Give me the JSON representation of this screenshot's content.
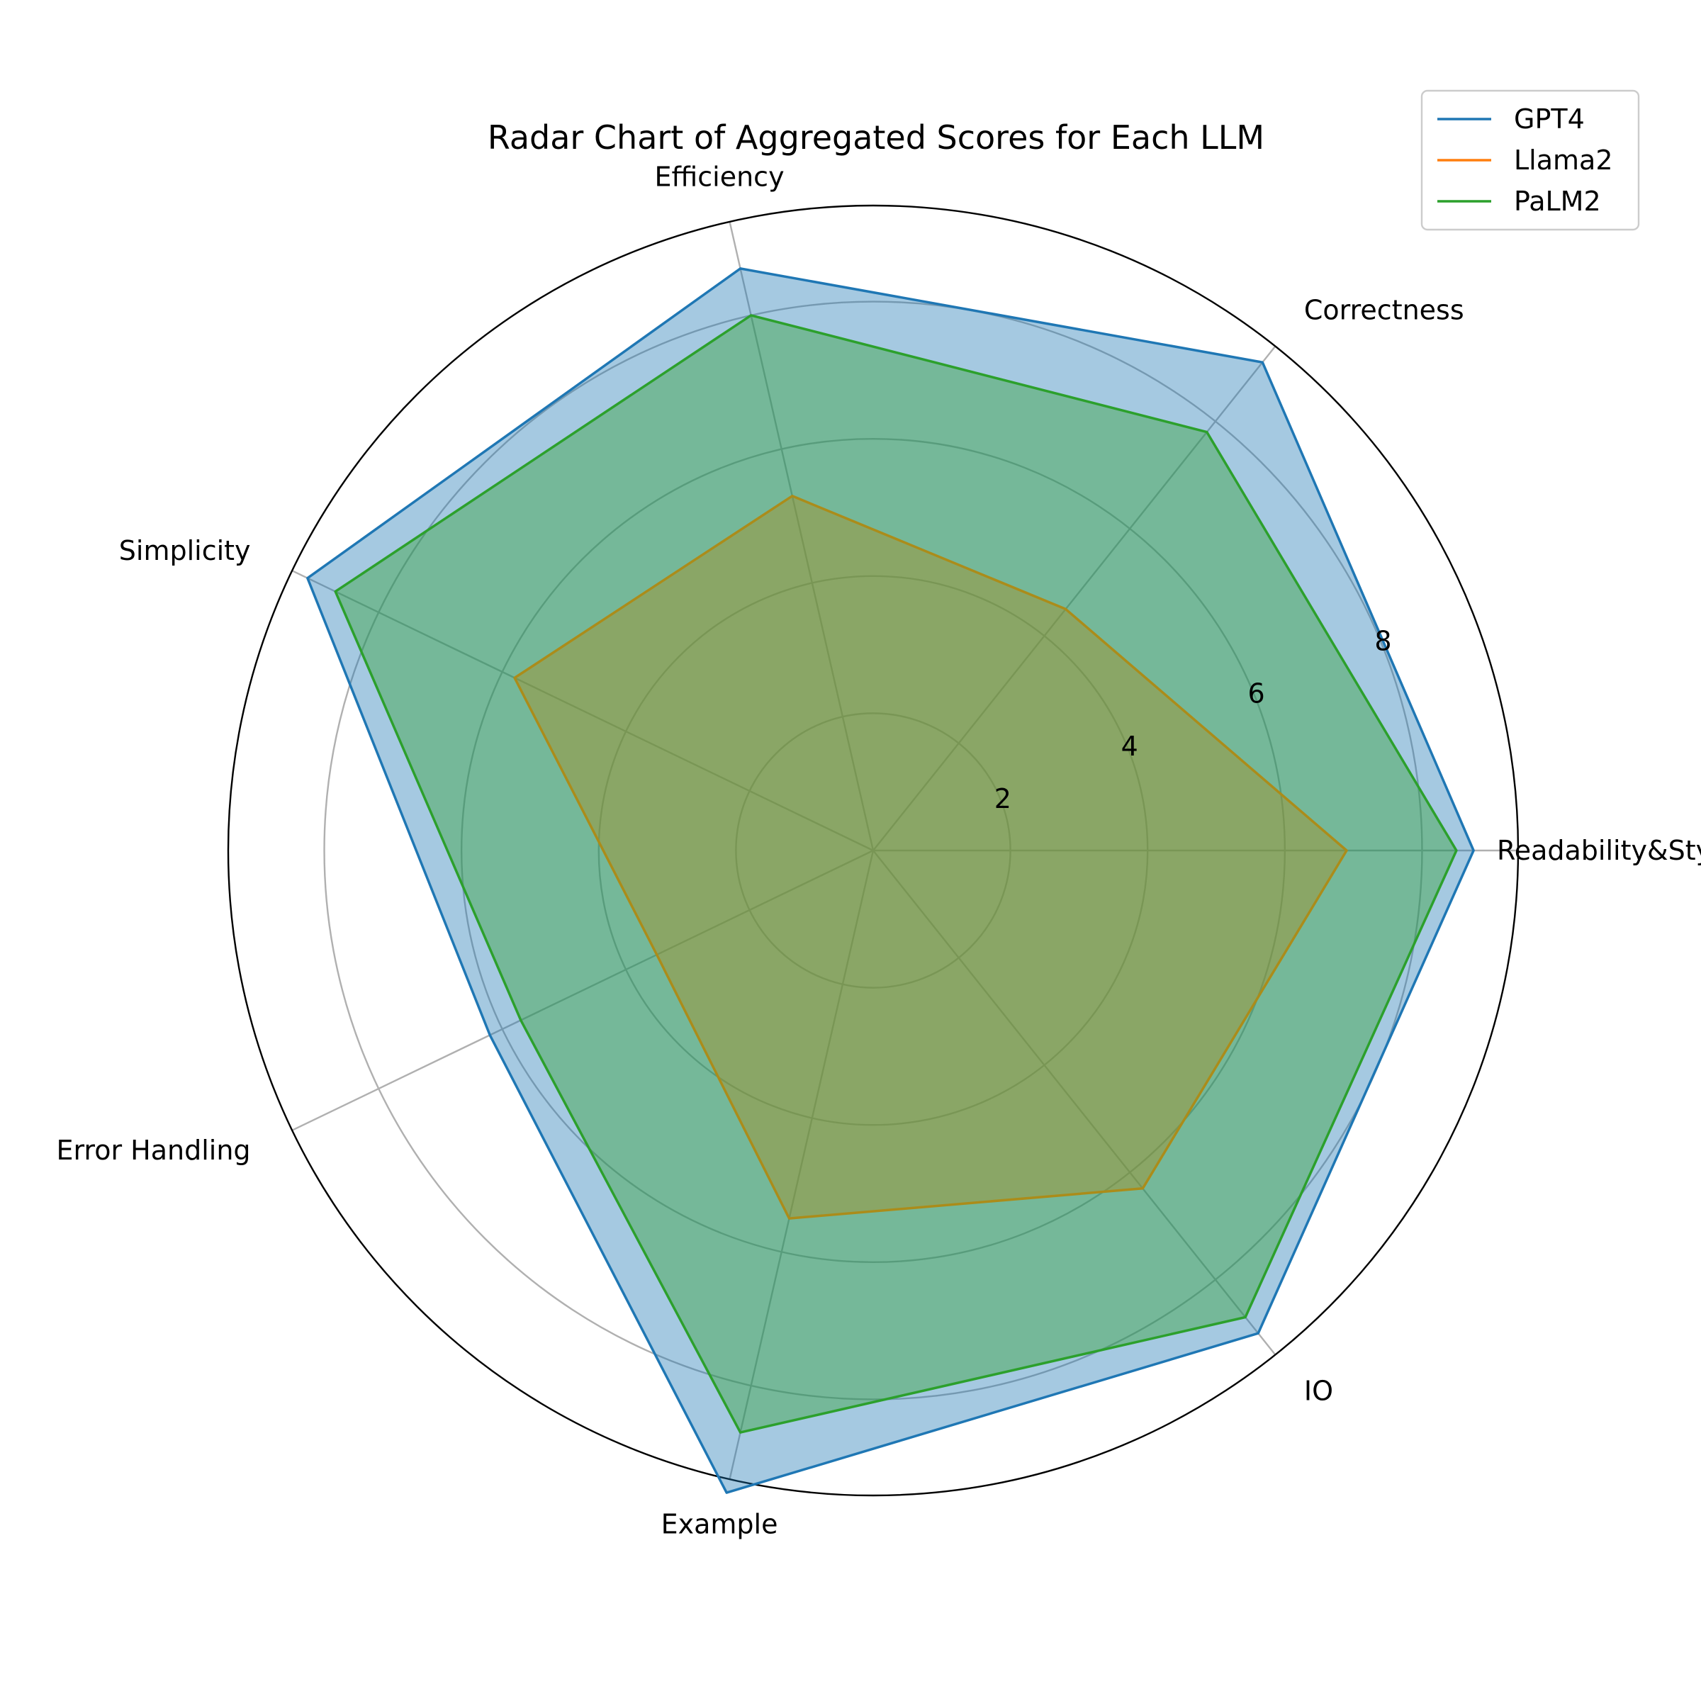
{
  "chart_data": {
    "type": "radar",
    "title": "Radar Chart of Aggregated Scores for Each LLM",
    "categories": [
      "Readability&Style",
      "Correctness",
      "Efficiency",
      "Simplicity",
      "Error Handling",
      "Example",
      "IO"
    ],
    "rticks": [
      2,
      4,
      6,
      8
    ],
    "rlim": [
      0,
      9.4
    ],
    "grid": true,
    "legend_position": "top-right",
    "series": [
      {
        "name": "GPT4",
        "color": "#1f77b4",
        "fill": true,
        "values": [
          8.75,
          9.1,
          8.7,
          9.15,
          6.2,
          9.6,
          9.0
        ]
      },
      {
        "name": "Llama2",
        "color": "#ff7f0e",
        "fill": true,
        "values": [
          6.9,
          4.5,
          5.3,
          5.8,
          3.5,
          5.5,
          6.3
        ]
      },
      {
        "name": "PaLM2",
        "color": "#2ca02c",
        "fill": true,
        "values": [
          8.5,
          7.8,
          8.0,
          8.7,
          5.7,
          8.7,
          8.7
        ]
      }
    ]
  }
}
